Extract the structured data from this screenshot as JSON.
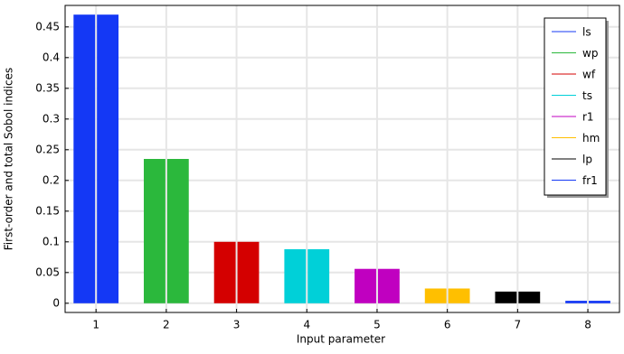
{
  "chart_data": {
    "type": "bar",
    "xlabel": "Input parameter",
    "ylabel": "First-order and total Sobol indices",
    "xlim": [
      0.56,
      8.45
    ],
    "xticks": [
      1,
      2,
      3,
      4,
      5,
      6,
      7,
      8
    ],
    "ylim": [
      -0.015,
      0.485
    ],
    "yticks": [
      0,
      0.05,
      0.1,
      0.15,
      0.2,
      0.25,
      0.3,
      0.35,
      0.4,
      0.45
    ],
    "grid": true,
    "legend": "upper right",
    "series": [
      {
        "name": "ls",
        "color": "#1438f5",
        "x": 1,
        "values": [
          0.47,
          0.47
        ]
      },
      {
        "name": "wp",
        "color": "#2bb83c",
        "x": 2,
        "values": [
          0.235,
          0.235
        ]
      },
      {
        "name": "wf",
        "color": "#d40000",
        "x": 3,
        "values": [
          0.1,
          0.1
        ]
      },
      {
        "name": "ts",
        "color": "#00d0d8",
        "x": 4,
        "values": [
          0.088,
          0.088
        ]
      },
      {
        "name": "r1",
        "color": "#c000c0",
        "x": 5,
        "values": [
          0.056,
          0.056
        ]
      },
      {
        "name": "hm",
        "color": "#ffbf00",
        "x": 6,
        "values": [
          0.024,
          0.024
        ]
      },
      {
        "name": "lp",
        "color": "#000000",
        "x": 7,
        "values": [
          0.019,
          0.019
        ]
      },
      {
        "name": "fr1",
        "color": "#1438f5",
        "x": 8,
        "values": [
          0.004,
          0.004
        ]
      }
    ]
  }
}
